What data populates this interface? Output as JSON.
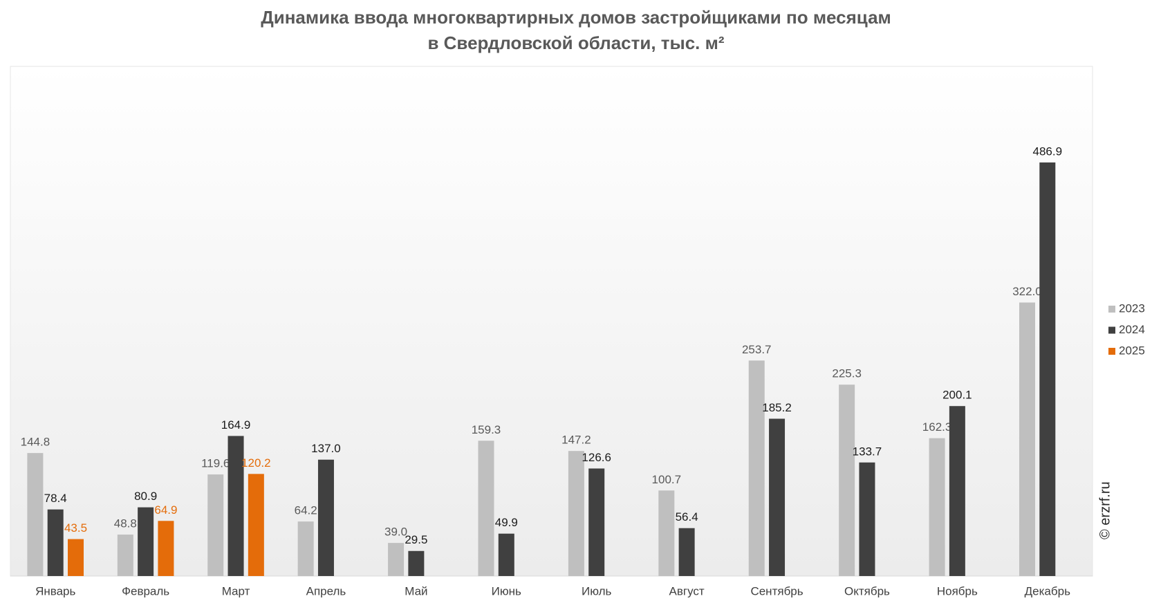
{
  "chart_data": {
    "type": "bar",
    "title": "Динамика ввода многоквартирных домов застройщиками по месяцам",
    "subtitle": "в Свердловской области, тыс. м²",
    "watermark": "© erzrf.ru",
    "categories": [
      "Январь",
      "Февраль",
      "Март",
      "Апрель",
      "Май",
      "Июнь",
      "Июль",
      "Август",
      "Сентябрь",
      "Октябрь",
      "Ноябрь",
      "Декабрь"
    ],
    "ylim": [
      0,
      600
    ],
    "series": [
      {
        "name": "2023",
        "color": "#bfbfbf",
        "label_color": "#595959",
        "values": [
          144.8,
          48.8,
          119.6,
          64.2,
          39.0,
          159.3,
          147.2,
          100.7,
          253.7,
          225.3,
          162.3,
          322.0
        ],
        "value_labels": [
          "144.8",
          "48.8",
          "119.6",
          "64.2",
          "39.0",
          "159.3",
          "147.2",
          "100.7",
          "253.7",
          "225.3",
          "162.3",
          "322.0"
        ]
      },
      {
        "name": "2024",
        "color": "#404040",
        "label_color": "#1a1a1a",
        "values": [
          78.4,
          80.9,
          164.9,
          137.0,
          29.5,
          49.9,
          126.6,
          56.4,
          185.2,
          133.7,
          200.1,
          486.9
        ],
        "value_labels": [
          "78.4",
          "80.9",
          "164.9",
          "137.0",
          "29.5",
          "49.9",
          "126.6",
          "56.4",
          "185.2",
          "133.7",
          "200.1",
          "486.9"
        ]
      },
      {
        "name": "2025",
        "color": "#e46c0a",
        "label_color": "#e46c0a",
        "values": [
          43.5,
          64.9,
          120.2,
          null,
          null,
          null,
          null,
          null,
          null,
          null,
          null,
          null
        ],
        "value_labels": [
          "43.5",
          "64.9",
          "120.2",
          null,
          null,
          null,
          null,
          null,
          null,
          null,
          null,
          null
        ]
      }
    ]
  }
}
